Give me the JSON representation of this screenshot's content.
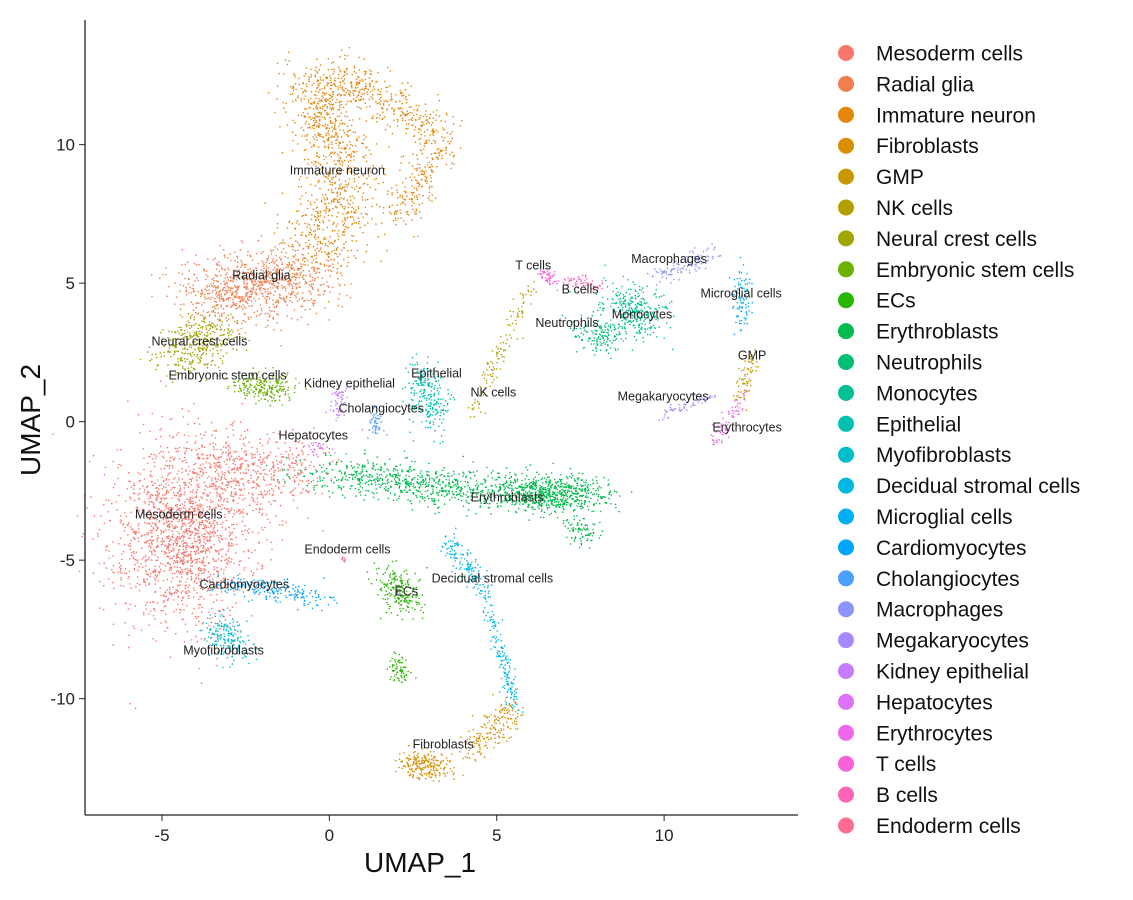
{
  "chart_data": {
    "type": "scatter",
    "title": "",
    "xlabel": "UMAP_1",
    "ylabel": "UMAP_2",
    "xlim": [
      -7.3,
      14.0
    ],
    "ylim": [
      -14.2,
      14.5
    ],
    "xticks": [
      -5,
      0,
      5,
      10
    ],
    "yticks": [
      -10,
      -5,
      0,
      5,
      10
    ],
    "grid": false,
    "legend_position": "right",
    "categories": [
      {
        "name": "Mesoderm cells",
        "color": "#F8766D"
      },
      {
        "name": "Radial glia",
        "color": "#F07E4E"
      },
      {
        "name": "Immature neuron",
        "color": "#E4870C"
      },
      {
        "name": "Fibroblasts",
        "color": "#D89000"
      },
      {
        "name": "GMP",
        "color": "#C89800"
      },
      {
        "name": "NK cells",
        "color": "#B59F00"
      },
      {
        "name": "Neural crest cells",
        "color": "#9FA600"
      },
      {
        "name": "Embryonic stem cells",
        "color": "#6BB100"
      },
      {
        "name": "ECs",
        "color": "#28B600"
      },
      {
        "name": "Erythroblasts",
        "color": "#00BB4E"
      },
      {
        "name": "Neutrophils",
        "color": "#00BE74"
      },
      {
        "name": "Monocytes",
        "color": "#00C094"
      },
      {
        "name": "Epithelial",
        "color": "#00C0B2"
      },
      {
        "name": "Myofibroblasts",
        "color": "#00BDCC"
      },
      {
        "name": "Decidual stromal cells",
        "color": "#00B8E2"
      },
      {
        "name": "Microglial cells",
        "color": "#00B0F4"
      },
      {
        "name": "Cardiomyocytes",
        "color": "#00A5FF"
      },
      {
        "name": "Cholangiocytes",
        "color": "#4A9FFF"
      },
      {
        "name": "Macrophages",
        "color": "#8B93FF"
      },
      {
        "name": "Megakaryocytes",
        "color": "#A58AFF"
      },
      {
        "name": "Kidney epithelial",
        "color": "#C77CFF"
      },
      {
        "name": "Hepatocytes",
        "color": "#DC71FA"
      },
      {
        "name": "Erythrocytes",
        "color": "#EE67EB"
      },
      {
        "name": "T cells",
        "color": "#FB61D7"
      },
      {
        "name": "B cells",
        "color": "#FF63B6"
      },
      {
        "name": "Endoderm cells",
        "color": "#FF6C91"
      }
    ],
    "cluster_labels": [
      {
        "text": "Immature neuron",
        "x": 0.24,
        "y": 9.06
      },
      {
        "text": "Radial glia",
        "x": -2.03,
        "y": 5.27
      },
      {
        "text": "Neural crest cells",
        "x": -3.88,
        "y": 2.89
      },
      {
        "text": "Embryonic stem cells",
        "x": -3.04,
        "y": 1.66
      },
      {
        "text": "Kidney epithelial",
        "x": 0.6,
        "y": 1.37
      },
      {
        "text": "Epithelial",
        "x": 3.2,
        "y": 1.73
      },
      {
        "text": "Cholangiocytes",
        "x": 1.55,
        "y": 0.47
      },
      {
        "text": "Hepatocytes",
        "x": -0.48,
        "y": -0.5
      },
      {
        "text": "NK cells",
        "x": 4.9,
        "y": 1.05
      },
      {
        "text": "T cells",
        "x": 6.09,
        "y": 5.63
      },
      {
        "text": "B cells",
        "x": 7.49,
        "y": 4.77
      },
      {
        "text": "Neutrophils",
        "x": 7.1,
        "y": 3.57
      },
      {
        "text": "Monocytes",
        "x": 9.34,
        "y": 3.86
      },
      {
        "text": "Macrophages",
        "x": 10.15,
        "y": 5.88
      },
      {
        "text": "Microglial cells",
        "x": 12.3,
        "y": 4.62
      },
      {
        "text": "GMP",
        "x": 12.63,
        "y": 2.38
      },
      {
        "text": "Megakaryocytes",
        "x": 9.97,
        "y": 0.9
      },
      {
        "text": "Erythrocytes",
        "x": 12.48,
        "y": -0.22
      },
      {
        "text": "Erythroblasts",
        "x": 5.31,
        "y": -2.74
      },
      {
        "text": "Mesoderm cells",
        "x": -4.5,
        "y": -3.36
      },
      {
        "text": "Endoderm cells",
        "x": 0.54,
        "y": -4.62
      },
      {
        "text": "Decidual stromal cells",
        "x": 4.87,
        "y": -5.67
      },
      {
        "text": "ECs",
        "x": 2.3,
        "y": -6.14
      },
      {
        "text": "Cardiomyocytes",
        "x": -2.54,
        "y": -5.88
      },
      {
        "text": "Myofibroblasts",
        "x": -3.16,
        "y": -8.27
      },
      {
        "text": "Fibroblasts",
        "x": 3.4,
        "y": -11.66
      }
    ],
    "point_regions": [
      {
        "cluster": 0,
        "from": [
          -4.4,
          -2.5
        ],
        "to": [
          -4.4,
          -5.5
        ],
        "sd": [
          1.0,
          1.4
        ],
        "n": 1700
      },
      {
        "cluster": 0,
        "from": [
          -3.5,
          -1.5
        ],
        "to": [
          -1.0,
          -2.0
        ],
        "sd": [
          0.8,
          0.7
        ],
        "n": 500
      },
      {
        "cluster": 1,
        "from": [
          -3.6,
          4.6
        ],
        "to": [
          -0.8,
          5.2
        ],
        "sd": [
          0.8,
          0.6
        ],
        "n": 900
      },
      {
        "cluster": 2,
        "from": [
          -0.5,
          6.0
        ],
        "to": [
          0.8,
          9.0
        ],
        "sd": [
          0.6,
          0.8
        ],
        "n": 500
      },
      {
        "cluster": 2,
        "from": [
          0.2,
          9.5
        ],
        "to": [
          -0.4,
          12.5
        ],
        "sd": [
          0.5,
          0.5
        ],
        "n": 500
      },
      {
        "cluster": 2,
        "from": [
          0.5,
          12.5
        ],
        "to": [
          3.5,
          10.2
        ],
        "sd": [
          0.35,
          0.4
        ],
        "n": 350
      },
      {
        "cluster": 2,
        "from": [
          3.3,
          10.0
        ],
        "to": [
          2.0,
          7.2
        ],
        "sd": [
          0.3,
          0.3
        ],
        "n": 200
      },
      {
        "cluster": 3,
        "from": [
          2.4,
          -12.3
        ],
        "to": [
          3.4,
          -12.5
        ],
        "sd": [
          0.3,
          0.25
        ],
        "n": 220
      },
      {
        "cluster": 3,
        "from": [
          4.2,
          -11.8
        ],
        "to": [
          5.6,
          -10.4
        ],
        "sd": [
          0.2,
          0.3
        ],
        "n": 180
      },
      {
        "cluster": 4,
        "from": [
          12.7,
          2.3
        ],
        "to": [
          12.2,
          0.8
        ],
        "sd": [
          0.12,
          0.2
        ],
        "n": 70
      },
      {
        "cluster": 5,
        "from": [
          4.3,
          0.3
        ],
        "to": [
          6.0,
          4.9
        ],
        "sd": [
          0.12,
          0.15
        ],
        "n": 120
      },
      {
        "cluster": 6,
        "from": [
          -4.7,
          2.4
        ],
        "to": [
          -3.2,
          3.2
        ],
        "sd": [
          0.4,
          0.5
        ],
        "n": 350
      },
      {
        "cluster": 7,
        "from": [
          -2.5,
          1.4
        ],
        "to": [
          -1.4,
          1.1
        ],
        "sd": [
          0.3,
          0.25
        ],
        "n": 220
      },
      {
        "cluster": 8,
        "from": [
          1.8,
          -5.5
        ],
        "to": [
          2.4,
          -6.6
        ],
        "sd": [
          0.3,
          0.35
        ],
        "n": 200
      },
      {
        "cluster": 8,
        "from": [
          2.0,
          -8.6
        ],
        "to": [
          2.2,
          -9.3
        ],
        "sd": [
          0.15,
          0.2
        ],
        "n": 70
      },
      {
        "cluster": 9,
        "from": [
          0.0,
          -1.8
        ],
        "to": [
          5.0,
          -2.6
        ],
        "sd": [
          0.9,
          0.35
        ],
        "n": 700
      },
      {
        "cluster": 9,
        "from": [
          5.5,
          -2.5
        ],
        "to": [
          7.8,
          -2.7
        ],
        "sd": [
          0.5,
          0.35
        ],
        "n": 700
      },
      {
        "cluster": 9,
        "from": [
          7.3,
          -3.8
        ],
        "to": [
          7.8,
          -4.2
        ],
        "sd": [
          0.2,
          0.2
        ],
        "n": 80
      },
      {
        "cluster": 10,
        "from": [
          7.6,
          3.3
        ],
        "to": [
          8.4,
          3.0
        ],
        "sd": [
          0.3,
          0.3
        ],
        "n": 150
      },
      {
        "cluster": 11,
        "from": [
          8.6,
          4.4
        ],
        "to": [
          9.6,
          3.6
        ],
        "sd": [
          0.4,
          0.4
        ],
        "n": 300
      },
      {
        "cluster": 12,
        "from": [
          2.8,
          1.8
        ],
        "to": [
          3.1,
          0.0
        ],
        "sd": [
          0.3,
          0.4
        ],
        "n": 250
      },
      {
        "cluster": 13,
        "from": [
          -3.4,
          -7.4
        ],
        "to": [
          -2.7,
          -8.3
        ],
        "sd": [
          0.25,
          0.3
        ],
        "n": 180
      },
      {
        "cluster": 14,
        "from": [
          3.4,
          -4.2
        ],
        "to": [
          4.6,
          -6.0
        ],
        "sd": [
          0.15,
          0.25
        ],
        "n": 140
      },
      {
        "cluster": 14,
        "from": [
          4.6,
          -6.2
        ],
        "to": [
          5.6,
          -10.3
        ],
        "sd": [
          0.1,
          0.25
        ],
        "n": 160
      },
      {
        "cluster": 15,
        "from": [
          12.3,
          5.2
        ],
        "to": [
          12.3,
          3.5
        ],
        "sd": [
          0.15,
          0.25
        ],
        "n": 90
      },
      {
        "cluster": 16,
        "from": [
          -3.2,
          -5.8
        ],
        "to": [
          -0.3,
          -6.4
        ],
        "sd": [
          0.35,
          0.2
        ],
        "n": 200
      },
      {
        "cluster": 17,
        "from": [
          1.3,
          0.3
        ],
        "to": [
          1.4,
          -0.4
        ],
        "sd": [
          0.12,
          0.15
        ],
        "n": 50
      },
      {
        "cluster": 18,
        "from": [
          9.8,
          5.2
        ],
        "to": [
          11.6,
          6.1
        ],
        "sd": [
          0.2,
          0.15
        ],
        "n": 110
      },
      {
        "cluster": 19,
        "from": [
          9.8,
          0.2
        ],
        "to": [
          11.5,
          1.0
        ],
        "sd": [
          0.12,
          0.12
        ],
        "n": 60
      },
      {
        "cluster": 20,
        "from": [
          0.3,
          1.2
        ],
        "to": [
          0.2,
          0.2
        ],
        "sd": [
          0.12,
          0.15
        ],
        "n": 50
      },
      {
        "cluster": 21,
        "from": [
          -0.6,
          -0.8
        ],
        "to": [
          -0.1,
          -1.1
        ],
        "sd": [
          0.2,
          0.15
        ],
        "n": 30
      },
      {
        "cluster": 22,
        "from": [
          12.4,
          1.0
        ],
        "to": [
          11.5,
          -0.8
        ],
        "sd": [
          0.1,
          0.15
        ],
        "n": 70
      },
      {
        "cluster": 23,
        "from": [
          6.4,
          5.4
        ],
        "to": [
          6.7,
          5.0
        ],
        "sd": [
          0.12,
          0.12
        ],
        "n": 50
      },
      {
        "cluster": 24,
        "from": [
          7.1,
          5.1
        ],
        "to": [
          8.2,
          4.9
        ],
        "sd": [
          0.15,
          0.12
        ],
        "n": 60
      },
      {
        "cluster": 25,
        "from": [
          0.4,
          -4.9
        ],
        "to": [
          0.45,
          -5.05
        ],
        "sd": [
          0.04,
          0.04
        ],
        "n": 10
      }
    ]
  }
}
